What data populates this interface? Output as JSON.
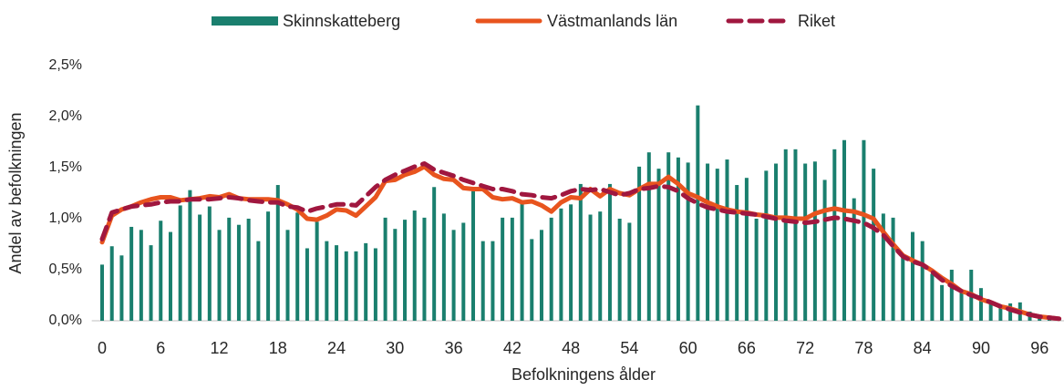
{
  "chart_data": {
    "type": "combo",
    "x_label": "Befolkningens ålder",
    "y_label": "Andel av befolkningen",
    "categories": [
      "0",
      null,
      null,
      null,
      null,
      null,
      "6",
      null,
      null,
      null,
      null,
      null,
      "12",
      null,
      null,
      null,
      null,
      null,
      "18",
      null,
      null,
      null,
      null,
      null,
      "24",
      null,
      null,
      null,
      null,
      null,
      "30",
      null,
      null,
      null,
      null,
      null,
      "36",
      null,
      null,
      null,
      null,
      null,
      "42",
      null,
      null,
      null,
      null,
      null,
      "48",
      null,
      null,
      null,
      null,
      null,
      "54",
      null,
      null,
      null,
      null,
      null,
      "60",
      null,
      null,
      null,
      null,
      null,
      "66",
      null,
      null,
      null,
      null,
      null,
      "72",
      null,
      null,
      null,
      null,
      null,
      "78",
      null,
      null,
      null,
      null,
      null,
      "84",
      null,
      null,
      null,
      null,
      null,
      "90",
      null,
      null,
      null,
      null,
      null,
      "96",
      null,
      null
    ],
    "ylim": [
      0,
      2.5
    ],
    "yticks": [
      {
        "value": 0,
        "label": "0,0%"
      },
      {
        "value": 0.5,
        "label": "0,5%"
      },
      {
        "value": 1.0,
        "label": "1,0%"
      },
      {
        "value": 1.5,
        "label": "1,5%"
      },
      {
        "value": 2.0,
        "label": "2,0%"
      },
      {
        "value": 2.5,
        "label": "2,5%"
      }
    ],
    "grid": false,
    "legend": "top",
    "series": [
      {
        "name": "Skinnskatteberg",
        "type": "bar",
        "color": "#1a7f6e",
        "values": [
          0.55,
          0.73,
          0.64,
          0.92,
          0.89,
          0.74,
          0.98,
          0.87,
          1.13,
          1.28,
          1.04,
          1.12,
          0.89,
          1.01,
          0.94,
          1.0,
          0.78,
          1.07,
          1.33,
          0.89,
          1.06,
          0.71,
          0.97,
          0.78,
          0.74,
          0.68,
          0.68,
          0.76,
          0.71,
          1.01,
          0.9,
          0.99,
          1.08,
          1.01,
          1.31,
          1.05,
          0.89,
          0.96,
          1.27,
          0.78,
          0.78,
          1.01,
          1.01,
          1.16,
          0.8,
          0.89,
          1.01,
          1.1,
          1.14,
          1.34,
          1.04,
          1.07,
          1.34,
          1.0,
          0.96,
          1.51,
          1.65,
          1.49,
          1.65,
          1.6,
          1.55,
          2.11,
          1.54,
          1.49,
          1.58,
          1.33,
          1.4,
          1.0,
          1.47,
          1.54,
          1.68,
          1.68,
          1.54,
          1.56,
          1.38,
          1.68,
          1.77,
          1.2,
          1.77,
          1.49,
          1.05,
          1.01,
          0.65,
          0.87,
          0.78,
          0.46,
          0.35,
          0.5,
          0.29,
          0.5,
          0.32,
          0.19,
          0.15,
          0.17,
          0.18,
          0.09,
          0.06,
          0.04,
          0.02
        ]
      },
      {
        "name": "Västmanlands län",
        "type": "line",
        "color": "#e8541e",
        "values": [
          0.77,
          1.03,
          1.09,
          1.12,
          1.16,
          1.19,
          1.21,
          1.21,
          1.18,
          1.19,
          1.2,
          1.22,
          1.21,
          1.24,
          1.2,
          1.19,
          1.19,
          1.19,
          1.18,
          1.14,
          1.09,
          1.0,
          0.99,
          1.03,
          1.09,
          1.08,
          1.03,
          1.12,
          1.21,
          1.37,
          1.38,
          1.43,
          1.46,
          1.51,
          1.43,
          1.39,
          1.38,
          1.3,
          1.29,
          1.29,
          1.21,
          1.19,
          1.2,
          1.16,
          1.17,
          1.13,
          1.07,
          1.16,
          1.21,
          1.2,
          1.29,
          1.22,
          1.29,
          1.25,
          1.23,
          1.29,
          1.34,
          1.34,
          1.41,
          1.34,
          1.25,
          1.21,
          1.16,
          1.12,
          1.09,
          1.07,
          1.06,
          1.04,
          1.03,
          1.01,
          1.01,
          1.0,
          1.0,
          1.05,
          1.08,
          1.1,
          1.08,
          1.07,
          1.04,
          1.0,
          0.87,
          0.75,
          0.64,
          0.59,
          0.55,
          0.49,
          0.42,
          0.36,
          0.29,
          0.26,
          0.21,
          0.18,
          0.14,
          0.12,
          0.09,
          0.06,
          0.04,
          0.03,
          0.02
        ]
      },
      {
        "name": "Riket",
        "type": "line",
        "dashed": true,
        "color": "#a0173f",
        "values": [
          0.8,
          1.06,
          1.09,
          1.12,
          1.13,
          1.14,
          1.16,
          1.17,
          1.17,
          1.19,
          1.19,
          1.19,
          1.2,
          1.21,
          1.2,
          1.18,
          1.17,
          1.16,
          1.16,
          1.12,
          1.11,
          1.07,
          1.1,
          1.12,
          1.14,
          1.14,
          1.13,
          1.22,
          1.31,
          1.38,
          1.43,
          1.47,
          1.51,
          1.54,
          1.48,
          1.45,
          1.42,
          1.38,
          1.35,
          1.32,
          1.29,
          1.29,
          1.27,
          1.24,
          1.23,
          1.21,
          1.2,
          1.23,
          1.27,
          1.29,
          1.28,
          1.29,
          1.26,
          1.23,
          1.25,
          1.29,
          1.3,
          1.32,
          1.31,
          1.27,
          1.2,
          1.15,
          1.11,
          1.09,
          1.07,
          1.06,
          1.05,
          1.04,
          1.02,
          1.0,
          0.98,
          0.97,
          0.96,
          0.97,
          0.99,
          1.01,
          1.0,
          0.98,
          0.96,
          0.91,
          0.84,
          0.73,
          0.63,
          0.58,
          0.55,
          0.48,
          0.4,
          0.34,
          0.29,
          0.25,
          0.22,
          0.18,
          0.14,
          0.11,
          0.08,
          0.06,
          0.04,
          0.03,
          0.02
        ]
      }
    ]
  }
}
